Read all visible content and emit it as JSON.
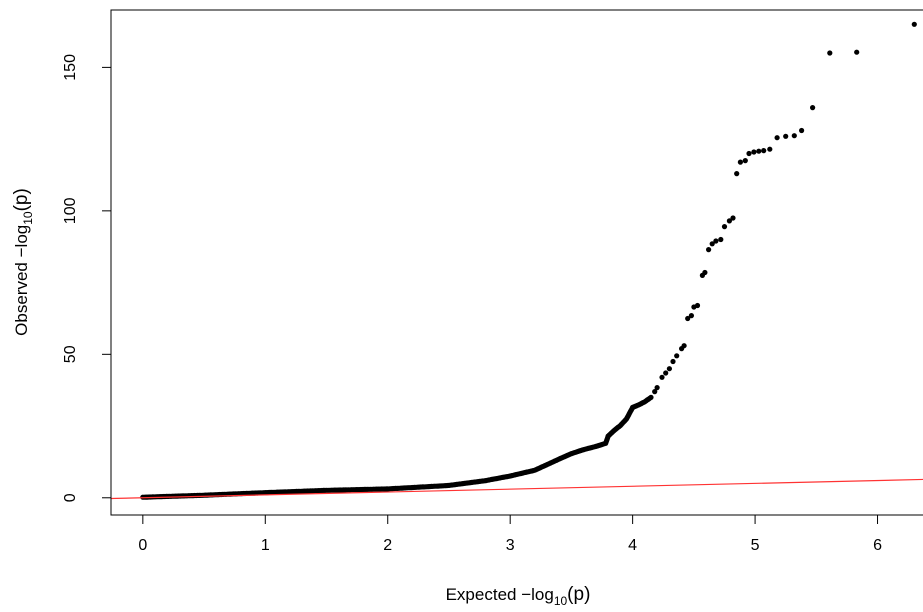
{
  "chart_data": {
    "type": "scatter",
    "title": "",
    "xlabel": {
      "prefix": "Expected  −log",
      "subscript": "10",
      "suffix": "(p)"
    },
    "ylabel": {
      "prefix": "Observed  −log",
      "subscript": "10",
      "suffix": "(p)"
    },
    "xlim": [
      -0.26,
      6.6
    ],
    "ylim": [
      -6,
      170
    ],
    "x_ticks": [
      0,
      1,
      2,
      3,
      4,
      5,
      6
    ],
    "y_ticks": [
      0,
      50,
      100,
      150
    ],
    "grid": false,
    "legend": "none",
    "colors": {
      "points": "#000000",
      "reference_line": "#ff3333",
      "axes": "#000000"
    },
    "reference_line": {
      "from": [
        0,
        0
      ],
      "to": [
        6.6,
        6.6
      ]
    },
    "series": [
      {
        "dense_segments": [
          {
            "x": [
              0.0,
              0.5,
              1.0,
              1.5,
              2.0,
              2.5,
              2.8,
              3.0,
              3.2,
              3.4,
              3.5,
              3.6,
              3.7,
              3.78,
              3.8,
              3.85,
              3.9,
              3.95,
              4.0,
              4.05,
              4.1,
              4.15
            ],
            "y": [
              0.2,
              0.9,
              1.8,
              2.6,
              3.1,
              4.3,
              6.0,
              7.6,
              9.6,
              13.5,
              15.4,
              16.8,
              17.9,
              19.0,
              21.5,
              23.5,
              25.2,
              27.5,
              31.5,
              32.4,
              33.5,
              35.0
            ]
          }
        ],
        "points": [
          [
            4.18,
            37.0
          ],
          [
            4.2,
            38.4
          ],
          [
            4.24,
            42.0
          ],
          [
            4.27,
            43.5
          ],
          [
            4.3,
            45.0
          ],
          [
            4.33,
            47.5
          ],
          [
            4.36,
            49.5
          ],
          [
            4.4,
            52.0
          ],
          [
            4.42,
            53.0
          ],
          [
            4.45,
            62.5
          ],
          [
            4.48,
            63.5
          ],
          [
            4.5,
            66.5
          ],
          [
            4.53,
            67.0
          ],
          [
            4.57,
            77.5
          ],
          [
            4.59,
            78.5
          ],
          [
            4.62,
            86.5
          ],
          [
            4.65,
            88.5
          ],
          [
            4.68,
            89.5
          ],
          [
            4.72,
            90.0
          ],
          [
            4.75,
            94.5
          ],
          [
            4.79,
            96.5
          ],
          [
            4.82,
            97.5
          ],
          [
            4.85,
            113.0
          ],
          [
            4.88,
            117.0
          ],
          [
            4.92,
            117.5
          ],
          [
            4.95,
            120.0
          ],
          [
            4.99,
            120.5
          ],
          [
            5.03,
            120.8
          ],
          [
            5.07,
            121.0
          ],
          [
            5.12,
            121.5
          ],
          [
            5.18,
            125.5
          ],
          [
            5.25,
            126.0
          ],
          [
            5.32,
            126.2
          ],
          [
            5.38,
            128.0
          ],
          [
            5.47,
            136.0
          ],
          [
            5.61,
            155.0
          ],
          [
            5.83,
            155.3
          ],
          [
            6.3,
            165.0
          ]
        ]
      }
    ]
  }
}
